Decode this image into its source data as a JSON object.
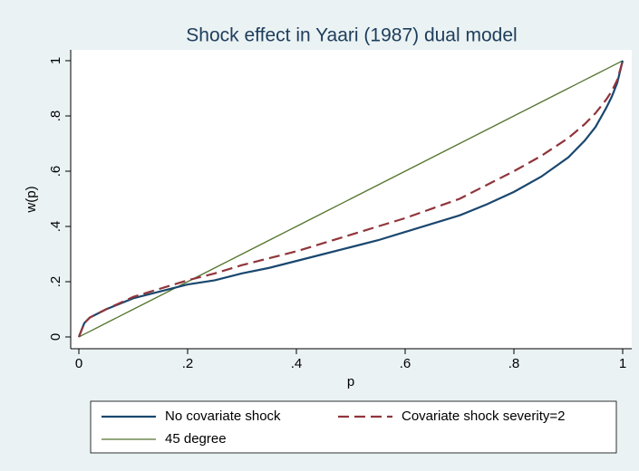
{
  "chart_data": {
    "type": "line",
    "title": "Shock effect in Yaari (1987) dual model",
    "xlabel": "p",
    "ylabel": "w(p)",
    "x": [
      0,
      0.01,
      0.02,
      0.05,
      0.1,
      0.15,
      0.2,
      0.25,
      0.3,
      0.35,
      0.4,
      0.45,
      0.5,
      0.55,
      0.6,
      0.65,
      0.7,
      0.75,
      0.8,
      0.85,
      0.9,
      0.93,
      0.95,
      0.97,
      0.98,
      0.99,
      1
    ],
    "series": [
      {
        "name": "No covariate shock",
        "color": "#1a476f",
        "dash": "solid",
        "values": [
          0,
          0.05,
          0.07,
          0.1,
          0.14,
          0.165,
          0.19,
          0.205,
          0.23,
          0.25,
          0.275,
          0.3,
          0.325,
          0.35,
          0.38,
          0.41,
          0.44,
          0.48,
          0.525,
          0.58,
          0.65,
          0.71,
          0.76,
          0.83,
          0.87,
          0.92,
          1
        ]
      },
      {
        "name": "Covariate shock severity=2",
        "color": "#90353b",
        "dash": "dashed",
        "values": [
          0,
          0.05,
          0.07,
          0.1,
          0.145,
          0.175,
          0.205,
          0.23,
          0.26,
          0.285,
          0.31,
          0.34,
          0.37,
          0.4,
          0.43,
          0.465,
          0.5,
          0.55,
          0.6,
          0.655,
          0.72,
          0.77,
          0.81,
          0.86,
          0.89,
          0.93,
          1
        ]
      },
      {
        "name": "45 degree",
        "color": "#55752f",
        "dash": "solid",
        "values": [
          0,
          0.01,
          0.02,
          0.05,
          0.1,
          0.15,
          0.2,
          0.25,
          0.3,
          0.35,
          0.4,
          0.45,
          0.5,
          0.55,
          0.6,
          0.65,
          0.7,
          0.75,
          0.8,
          0.85,
          0.9,
          0.93,
          0.95,
          0.97,
          0.98,
          0.99,
          1
        ]
      }
    ],
    "xlim": [
      0,
      1
    ],
    "ylim": [
      0,
      1
    ],
    "xticks": [
      0,
      {
        "value": 0.2,
        "label": ".2"
      },
      {
        "value": 0.4,
        "label": ".4"
      },
      {
        "value": 0.6,
        "label": ".6"
      },
      {
        "value": 0.8,
        "label": ".8"
      },
      1
    ],
    "yticks": [
      0,
      {
        "value": 0.2,
        "label": ".2"
      },
      {
        "value": 0.4,
        "label": ".4"
      },
      {
        "value": 0.6,
        "label": ".6"
      },
      {
        "value": 0.8,
        "label": ".8"
      },
      1
    ],
    "grid": false,
    "legend": "bottom"
  }
}
